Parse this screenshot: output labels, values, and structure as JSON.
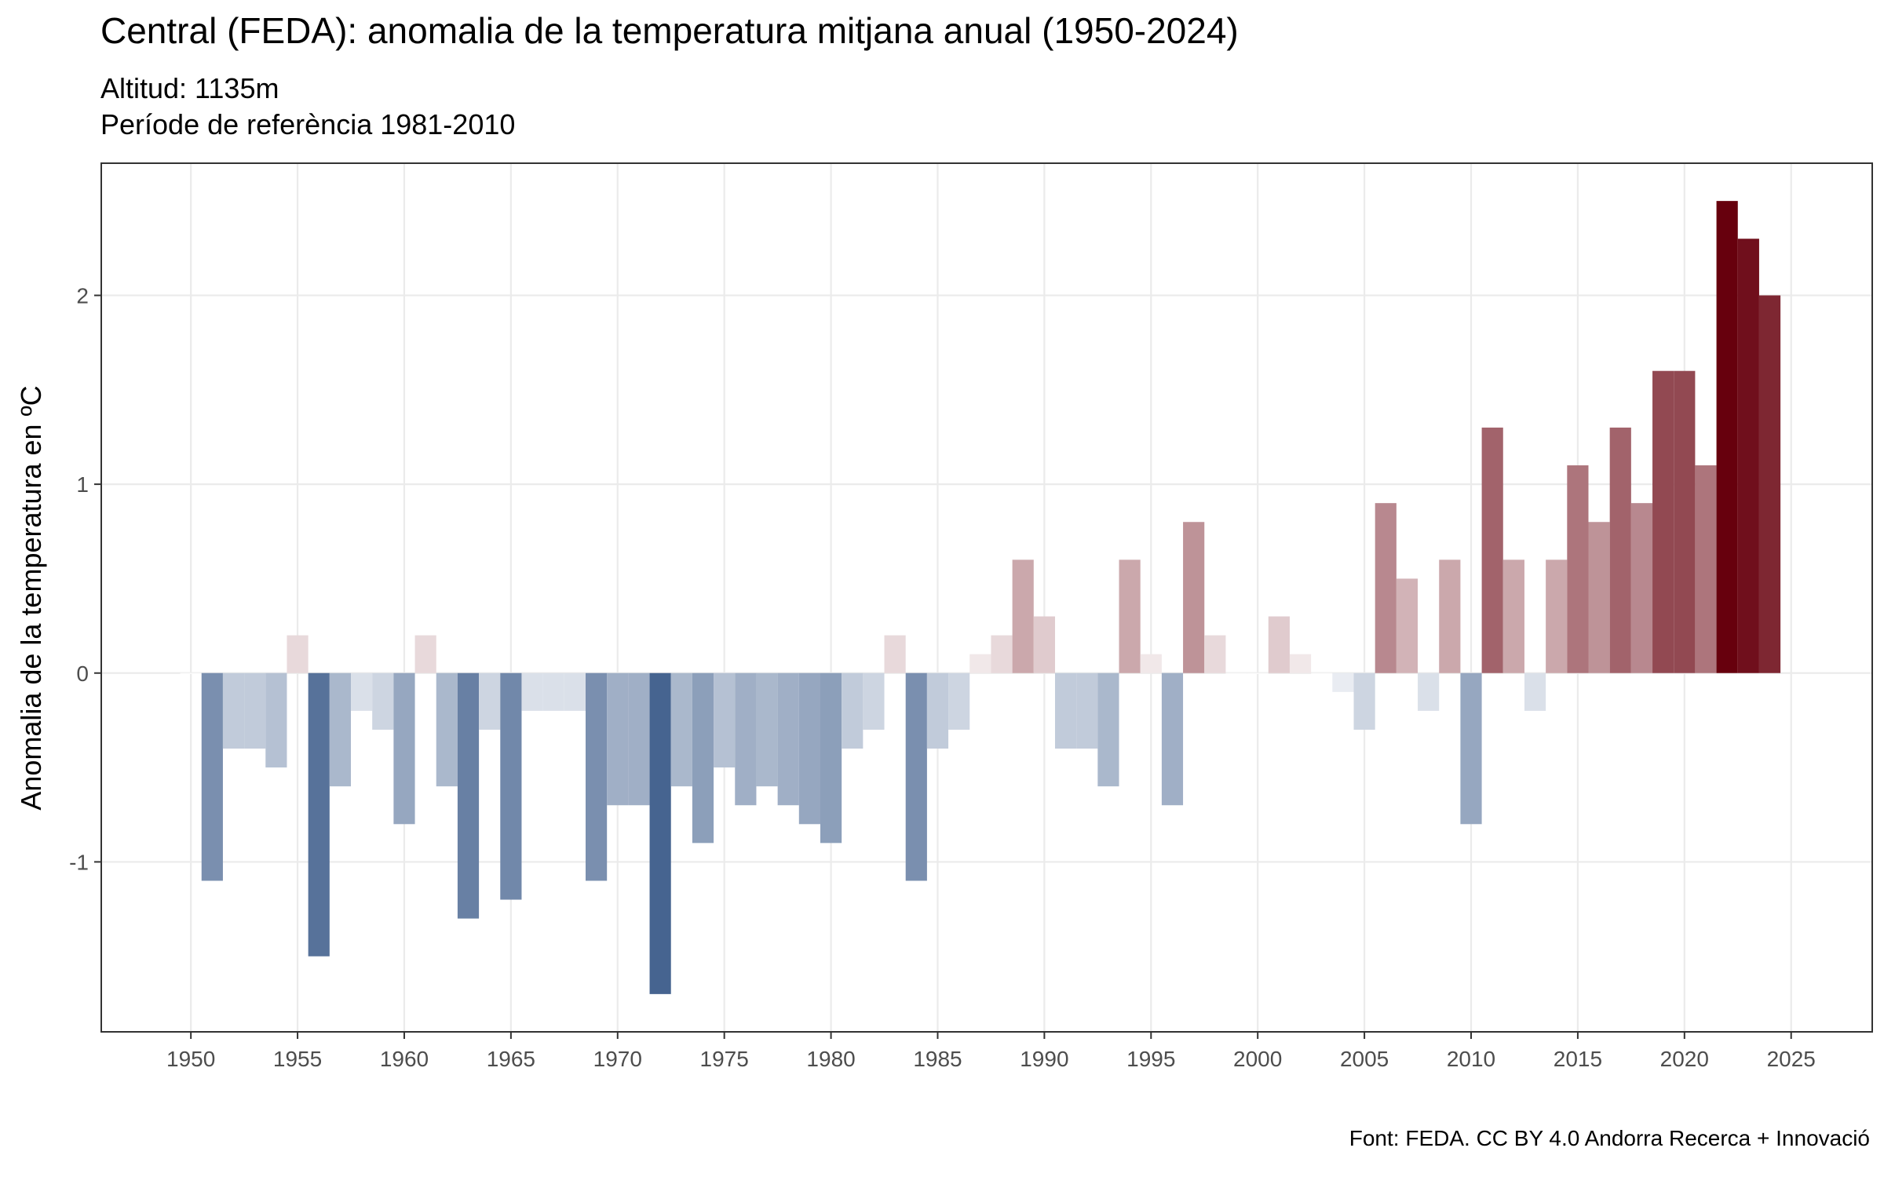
{
  "chart_data": {
    "type": "bar",
    "title": "Central (FEDA): anomalia de la temperatura mitjana anual (1950-2024)",
    "subtitle_lines": [
      "Altitud: 1135m",
      "Període de referència 1981-2010"
    ],
    "xlabel": "",
    "ylabel": "Anomalia de la temperatura en ºC",
    "caption": "Font: FEDA. CC BY 4.0 Andorra Recerca + Innovació",
    "x": [
      1950,
      1951,
      1952,
      1953,
      1954,
      1955,
      1956,
      1957,
      1958,
      1959,
      1960,
      1961,
      1962,
      1963,
      1964,
      1965,
      1966,
      1967,
      1968,
      1969,
      1970,
      1971,
      1972,
      1973,
      1974,
      1975,
      1976,
      1977,
      1978,
      1979,
      1980,
      1981,
      1982,
      1983,
      1984,
      1985,
      1986,
      1987,
      1988,
      1989,
      1990,
      1991,
      1992,
      1993,
      1994,
      1995,
      1996,
      1997,
      1998,
      1999,
      2000,
      2001,
      2002,
      2003,
      2004,
      2005,
      2006,
      2007,
      2008,
      2009,
      2010,
      2011,
      2012,
      2013,
      2014,
      2015,
      2016,
      2017,
      2018,
      2019,
      2020,
      2021,
      2022,
      2023,
      2024
    ],
    "values": [
      0.0,
      -1.1,
      -0.4,
      -0.4,
      -0.5,
      0.2,
      -1.5,
      -0.6,
      -0.2,
      -0.3,
      -0.8,
      0.2,
      -0.6,
      -1.3,
      -0.3,
      -1.2,
      -0.2,
      -0.2,
      -0.2,
      -1.1,
      -0.7,
      -0.7,
      -1.7,
      -0.6,
      -0.9,
      -0.5,
      -0.7,
      -0.6,
      -0.7,
      -0.8,
      -0.9,
      -0.4,
      -0.3,
      0.2,
      -1.1,
      -0.4,
      -0.3,
      0.1,
      0.2,
      0.6,
      0.3,
      -0.4,
      -0.4,
      -0.6,
      0.6,
      0.1,
      -0.7,
      0.8,
      0.2,
      0.0,
      0.0,
      0.3,
      0.1,
      0.0,
      -0.1,
      -0.3,
      0.9,
      0.5,
      -0.2,
      0.6,
      -0.8,
      1.3,
      0.6,
      -0.2,
      0.6,
      1.1,
      0.8,
      1.3,
      0.9,
      1.6,
      1.6,
      1.1,
      2.5,
      2.3,
      2.0
    ],
    "xlim": [
      1945.8,
      2028.8
    ],
    "ylim": [
      -1.9,
      2.7
    ],
    "xticks": [
      "1950",
      "1955",
      "1960",
      "1965",
      "1970",
      "1975",
      "1980",
      "1985",
      "1990",
      "1995",
      "2000",
      "2005",
      "2010",
      "2015",
      "2020",
      "2025"
    ],
    "yticks": [
      "-1",
      "0",
      "1",
      "2"
    ],
    "grid": true,
    "legend": "none",
    "color_scale": {
      "negative": "#08306b",
      "neutral": "#ffffff",
      "positive": "#67000d",
      "extent": 2.5
    },
    "colors": {
      "panel_border": "#333333",
      "grid": "#ebebeb",
      "tick_text": "#4d4d4d"
    }
  }
}
